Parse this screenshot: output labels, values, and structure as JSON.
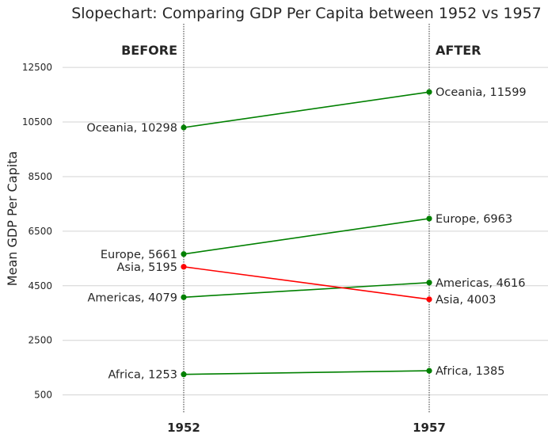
{
  "chart_data": {
    "type": "slope",
    "title": "Slopechart: Comparing GDP Per Capita between 1952 vs 1957",
    "ylabel": "Mean GDP Per Capita",
    "xlabel": "",
    "x_categories": [
      "1952",
      "1957"
    ],
    "left_header": "BEFORE",
    "right_header": "AFTER",
    "yticks": [
      500,
      2500,
      4500,
      6500,
      8500,
      10500,
      12500
    ],
    "ylim": [
      -150,
      14100
    ],
    "grid": "horizontal",
    "colors": {
      "up": "#008000",
      "down": "#ff0000",
      "grid": "#d3d3d3",
      "guide": "#000000"
    },
    "series": [
      {
        "name": "Africa",
        "before": 1253,
        "after": 1385,
        "left_label": "Africa, 1253",
        "right_label": "Africa, 1385"
      },
      {
        "name": "Americas",
        "before": 4079,
        "after": 4616,
        "left_label": "Americas, 4079",
        "right_label": "Americas, 4616"
      },
      {
        "name": "Asia",
        "before": 5195,
        "after": 4003,
        "left_label": "Asia, 5195",
        "right_label": "Asia, 4003"
      },
      {
        "name": "Europe",
        "before": 5661,
        "after": 6963,
        "left_label": "Europe, 5661",
        "right_label": "Europe, 6963"
      },
      {
        "name": "Oceania",
        "before": 10298,
        "after": 11599,
        "left_label": "Oceania, 10298",
        "right_label": "Oceania, 11599"
      }
    ]
  }
}
